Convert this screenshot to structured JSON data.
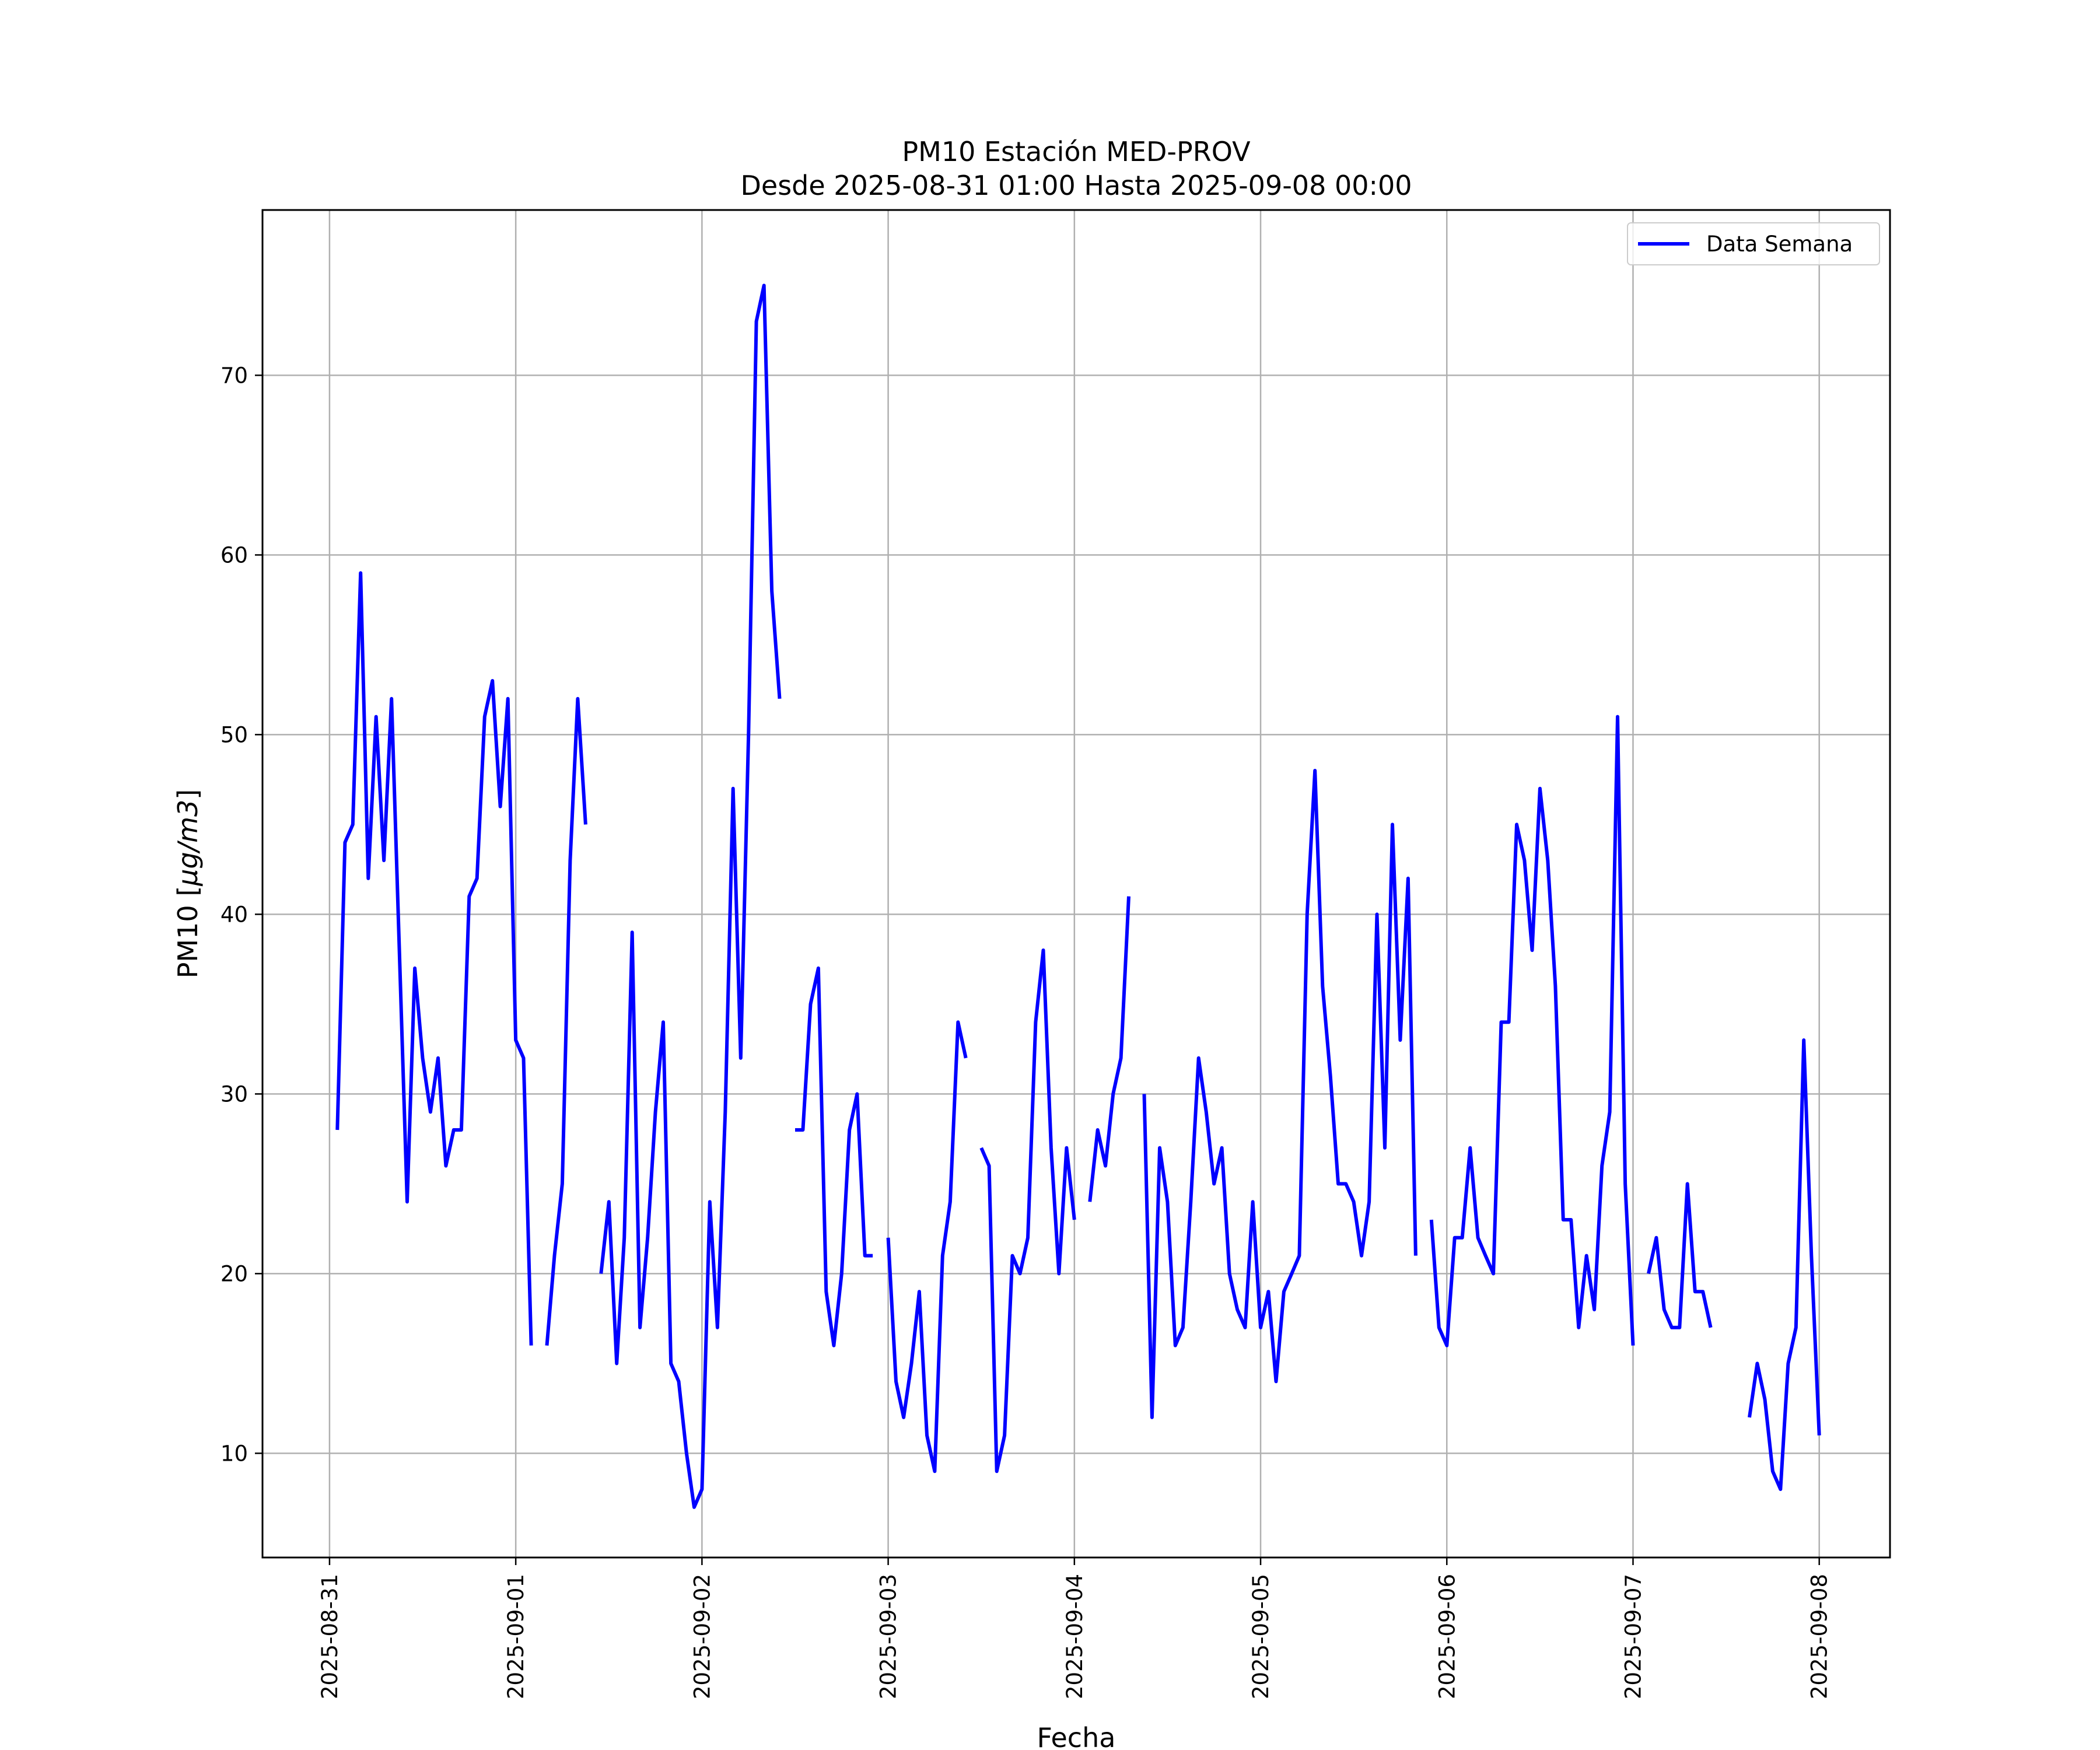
{
  "chart_data": {
    "type": "line",
    "title": "PM10 Estación MED-PROV",
    "subtitle": "Desde 2025-08-31 01:00 Hasta 2025-09-08 00:00",
    "xlabel": "Fecha",
    "ylabel_prefix": "PM10 [",
    "ylabel_unit": "μg/m3",
    "ylabel_suffix": "]",
    "x_tick_labels": [
      "2025-08-31",
      "2025-09-01",
      "2025-09-02",
      "2025-09-03",
      "2025-09-04",
      "2025-09-05",
      "2025-09-06",
      "2025-09-07",
      "2025-09-08"
    ],
    "y_ticks": [
      10,
      20,
      30,
      40,
      50,
      60,
      70
    ],
    "ylim": [
      4.2,
      79.2
    ],
    "xlim_days": [
      -0.36,
      8.38
    ],
    "grid": true,
    "legend_placement": "top-right",
    "line_color": "#0000ff",
    "series": [
      {
        "name": "Data Semana",
        "segments": [
          [
            [
              0.042,
              28
            ],
            [
              0.083,
              44
            ],
            [
              0.125,
              45
            ],
            [
              0.167,
              59
            ],
            [
              0.208,
              42
            ],
            [
              0.25,
              51
            ],
            [
              0.292,
              43
            ],
            [
              0.333,
              52
            ],
            [
              0.375,
              38
            ],
            [
              0.417,
              24
            ],
            [
              0.458,
              37
            ],
            [
              0.5,
              32
            ],
            [
              0.542,
              29
            ],
            [
              0.583,
              32
            ],
            [
              0.625,
              26
            ],
            [
              0.667,
              28
            ],
            [
              0.708,
              28
            ],
            [
              0.75,
              41
            ],
            [
              0.792,
              42
            ],
            [
              0.833,
              51
            ],
            [
              0.875,
              53
            ],
            [
              0.917,
              46
            ],
            [
              0.958,
              52
            ],
            [
              1.0,
              33
            ],
            [
              1.042,
              32
            ],
            [
              1.083,
              16
            ]
          ],
          [
            [
              1.167,
              16
            ],
            [
              1.208,
              21
            ],
            [
              1.25,
              25
            ],
            [
              1.292,
              43
            ],
            [
              1.333,
              52
            ],
            [
              1.375,
              45
            ]
          ],
          [
            [
              1.458,
              20
            ],
            [
              1.5,
              24
            ],
            [
              1.542,
              15
            ],
            [
              1.583,
              22
            ],
            [
              1.625,
              39
            ],
            [
              1.667,
              17
            ],
            [
              1.708,
              22
            ],
            [
              1.75,
              29
            ],
            [
              1.792,
              34
            ],
            [
              1.833,
              15
            ],
            [
              1.875,
              14
            ],
            [
              1.917,
              10
            ],
            [
              1.958,
              7
            ],
            [
              2.0,
              8
            ],
            [
              2.042,
              24
            ],
            [
              2.083,
              17
            ],
            [
              2.125,
              29
            ],
            [
              2.167,
              47
            ],
            [
              2.208,
              32
            ],
            [
              2.25,
              50
            ],
            [
              2.292,
              73
            ],
            [
              2.333,
              75
            ],
            [
              2.375,
              58
            ],
            [
              2.417,
              52
            ]
          ],
          [
            [
              2.5,
              28
            ],
            [
              2.542,
              28
            ],
            [
              2.583,
              35
            ],
            [
              2.625,
              37
            ],
            [
              2.667,
              19
            ],
            [
              2.708,
              16
            ],
            [
              2.75,
              20
            ],
            [
              2.792,
              28
            ],
            [
              2.833,
              30
            ],
            [
              2.875,
              21
            ],
            [
              2.917,
              21
            ]
          ],
          [
            [
              3.0,
              22
            ],
            [
              3.042,
              14
            ],
            [
              3.083,
              12
            ],
            [
              3.125,
              15
            ],
            [
              3.167,
              19
            ],
            [
              3.208,
              11
            ],
            [
              3.25,
              9
            ],
            [
              3.292,
              21
            ],
            [
              3.333,
              24
            ],
            [
              3.375,
              34
            ],
            [
              3.417,
              32
            ]
          ],
          [
            [
              3.5,
              27
            ],
            [
              3.542,
              26
            ],
            [
              3.583,
              9
            ],
            [
              3.625,
              11
            ],
            [
              3.667,
              21
            ],
            [
              3.708,
              20
            ],
            [
              3.75,
              22
            ],
            [
              3.792,
              34
            ],
            [
              3.833,
              38
            ],
            [
              3.875,
              27
            ],
            [
              3.917,
              20
            ],
            [
              3.958,
              27
            ],
            [
              4.0,
              23
            ]
          ],
          [
            [
              4.083,
              24
            ],
            [
              4.125,
              28
            ],
            [
              4.167,
              26
            ],
            [
              4.208,
              30
            ],
            [
              4.25,
              32
            ],
            [
              4.292,
              41
            ]
          ],
          [
            [
              4.375,
              30
            ],
            [
              4.417,
              12
            ],
            [
              4.458,
              27
            ],
            [
              4.5,
              24
            ],
            [
              4.542,
              16
            ],
            [
              4.583,
              17
            ],
            [
              4.625,
              24
            ],
            [
              4.667,
              32
            ],
            [
              4.708,
              29
            ],
            [
              4.75,
              25
            ],
            [
              4.792,
              27
            ],
            [
              4.833,
              20
            ],
            [
              4.875,
              18
            ],
            [
              4.917,
              17
            ],
            [
              4.958,
              24
            ],
            [
              5.0,
              17
            ],
            [
              5.042,
              19
            ],
            [
              5.083,
              14
            ],
            [
              5.125,
              19
            ],
            [
              5.167,
              20
            ],
            [
              5.208,
              21
            ],
            [
              5.25,
              40
            ],
            [
              5.292,
              48
            ],
            [
              5.333,
              36
            ],
            [
              5.375,
              31
            ],
            [
              5.417,
              25
            ],
            [
              5.458,
              25
            ],
            [
              5.5,
              24
            ],
            [
              5.542,
              21
            ],
            [
              5.583,
              24
            ],
            [
              5.625,
              40
            ],
            [
              5.667,
              27
            ],
            [
              5.708,
              45
            ],
            [
              5.75,
              33
            ],
            [
              5.792,
              42
            ],
            [
              5.833,
              21
            ]
          ],
          [
            [
              5.917,
              23
            ],
            [
              5.958,
              17
            ],
            [
              6.0,
              16
            ],
            [
              6.042,
              22
            ],
            [
              6.083,
              22
            ],
            [
              6.125,
              27
            ],
            [
              6.167,
              22
            ],
            [
              6.208,
              21
            ],
            [
              6.25,
              20
            ],
            [
              6.292,
              34
            ],
            [
              6.333,
              34
            ],
            [
              6.375,
              45
            ],
            [
              6.417,
              43
            ],
            [
              6.458,
              38
            ],
            [
              6.5,
              47
            ],
            [
              6.542,
              43
            ],
            [
              6.583,
              36
            ],
            [
              6.625,
              23
            ],
            [
              6.667,
              23
            ],
            [
              6.708,
              17
            ],
            [
              6.75,
              21
            ],
            [
              6.792,
              18
            ],
            [
              6.833,
              26
            ],
            [
              6.875,
              29
            ],
            [
              6.917,
              51
            ],
            [
              6.958,
              25
            ],
            [
              7.0,
              16
            ]
          ],
          [
            [
              7.083,
              20
            ],
            [
              7.125,
              22
            ],
            [
              7.167,
              18
            ],
            [
              7.208,
              17
            ],
            [
              7.25,
              17
            ],
            [
              7.292,
              25
            ],
            [
              7.333,
              19
            ],
            [
              7.375,
              19
            ],
            [
              7.417,
              17
            ]
          ],
          [
            [
              7.625,
              12
            ],
            [
              7.667,
              15
            ],
            [
              7.708,
              13
            ],
            [
              7.75,
              9
            ],
            [
              7.792,
              8
            ],
            [
              7.833,
              15
            ],
            [
              7.875,
              17
            ],
            [
              7.917,
              33
            ],
            [
              7.958,
              21
            ],
            [
              8.0,
              11
            ]
          ]
        ]
      }
    ]
  }
}
